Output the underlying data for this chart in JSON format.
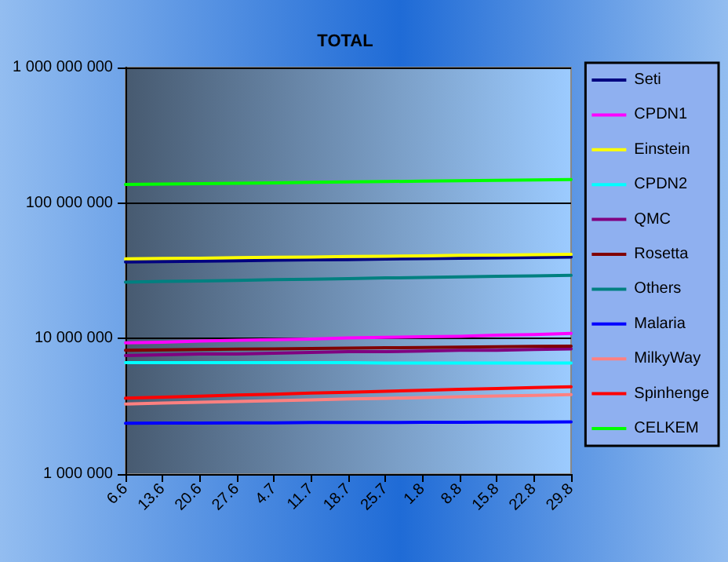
{
  "chart_data": {
    "type": "line",
    "title": "TOTAL",
    "categories": [
      "6.6",
      "13.6",
      "20.6",
      "27.6",
      "4.7",
      "11.7",
      "18.7",
      "25.7",
      "1.8",
      "8.8",
      "15.8",
      "22.8",
      "29.8"
    ],
    "series": [
      {
        "name": "Seti",
        "color": "#000080",
        "values": [
          36700000,
          37000000,
          37200000,
          37500000,
          37800000,
          38100000,
          38300000,
          38600000,
          38900000,
          39200000,
          39400000,
          39700000,
          40000000
        ]
      },
      {
        "name": "CPDN1",
        "color": "#ff00ff",
        "values": [
          9300000,
          9400000,
          9600000,
          9700000,
          9800000,
          9900000,
          10100000,
          10200000,
          10300000,
          10400000,
          10600000,
          10700000,
          10900000
        ]
      },
      {
        "name": "Einstein",
        "color": "#ffff00",
        "values": [
          38700000,
          39000000,
          39200000,
          39500000,
          39800000,
          40000000,
          40300000,
          40500000,
          40800000,
          41100000,
          41300000,
          41600000,
          41900000
        ]
      },
      {
        "name": "CPDN2",
        "color": "#00ffff",
        "values": [
          6650000,
          6650000,
          6650000,
          6650000,
          6650000,
          6650000,
          6650000,
          6600000,
          6600000,
          6600000,
          6600000,
          6600000,
          6600000
        ]
      },
      {
        "name": "QMC",
        "color": "#800080",
        "values": [
          7500000,
          7600000,
          7700000,
          7700000,
          7800000,
          7900000,
          8000000,
          8000000,
          8100000,
          8200000,
          8200000,
          8300000,
          8400000
        ]
      },
      {
        "name": "Rosetta",
        "color": "#800000",
        "values": [
          8200000,
          8250000,
          8300000,
          8350000,
          8400000,
          8450000,
          8500000,
          8550000,
          8600000,
          8650000,
          8700000,
          8750000,
          8800000
        ]
      },
      {
        "name": "Others",
        "color": "#008080",
        "values": [
          26100000,
          26400000,
          26600000,
          26900000,
          27200000,
          27400000,
          27700000,
          28000000,
          28200000,
          28500000,
          28800000,
          29000000,
          29300000
        ]
      },
      {
        "name": "Malaria",
        "color": "#0000ff",
        "values": [
          2370000,
          2380000,
          2380000,
          2390000,
          2390000,
          2400000,
          2400000,
          2400000,
          2410000,
          2410000,
          2420000,
          2420000,
          2430000
        ]
      },
      {
        "name": "MilkyWay",
        "color": "#ff8080",
        "values": [
          3290000,
          3340000,
          3390000,
          3430000,
          3480000,
          3530000,
          3580000,
          3620000,
          3670000,
          3720000,
          3770000,
          3810000,
          3860000
        ]
      },
      {
        "name": "Spinhenge",
        "color": "#ff0000",
        "values": [
          3630000,
          3700000,
          3760000,
          3830000,
          3890000,
          3960000,
          4020000,
          4090000,
          4150000,
          4220000,
          4280000,
          4350000,
          4410000
        ]
      },
      {
        "name": "CELKEM",
        "color": "#00ff00",
        "values": [
          137000000,
          138000000,
          139000000,
          140000000,
          141000000,
          142000000,
          143000000,
          144000000,
          145000000,
          146000000,
          147000000,
          148000000,
          149000000
        ]
      }
    ],
    "log": "y",
    "ylim": [
      1000000,
      1000000000
    ],
    "yticks": [
      {
        "value": 1000000,
        "label": "1 000 000"
      },
      {
        "value": 10000000,
        "label": "10 000 000"
      },
      {
        "value": 100000000,
        "label": "100 000 000"
      },
      {
        "value": 1000000000,
        "label": "1 000 000 000"
      }
    ],
    "grid": "y",
    "legend": "right",
    "marker": "none",
    "line_style": "solid"
  }
}
